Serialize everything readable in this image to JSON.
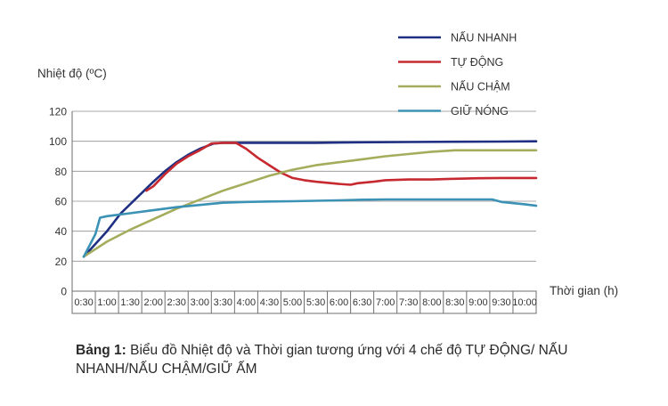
{
  "chart_data": {
    "type": "line",
    "ylabel": "Nhiệt độ (ºC)",
    "xlabel": "Thời gian (h)",
    "ylim": [
      0,
      120
    ],
    "yticks": [
      0,
      20,
      40,
      60,
      80,
      100,
      120
    ],
    "grid": true,
    "legend_position": "top-right",
    "categories": [
      "0:30",
      "1:00",
      "1:30",
      "2:00",
      "2:30",
      "3:00",
      "3:30",
      "4:00",
      "4:30",
      "5:00",
      "5:30",
      "6:00",
      "6:30",
      "7:00",
      "7:30",
      "8:00",
      "8:30",
      "9:00",
      "9:30",
      "10:00"
    ],
    "series": [
      {
        "name": "NẤU NHANH",
        "color": "#1f2f82",
        "points": [
          [
            0,
            23
          ],
          [
            0.3,
            28
          ],
          [
            1,
            40
          ],
          [
            1.6,
            52
          ],
          [
            2,
            58
          ],
          [
            2.6,
            67
          ],
          [
            3,
            73
          ],
          [
            3.5,
            80
          ],
          [
            4,
            86
          ],
          [
            4.5,
            91
          ],
          [
            5,
            95
          ],
          [
            5.6,
            98.5
          ],
          [
            6,
            99
          ],
          [
            7,
            99
          ],
          [
            8,
            99
          ],
          [
            10,
            99
          ],
          [
            12,
            99.3
          ],
          [
            14,
            99.5
          ],
          [
            16,
            99.7
          ],
          [
            18,
            99.8
          ],
          [
            19.5,
            100
          ]
        ]
      },
      {
        "name": "TỰ ĐỘNG",
        "color": "#c62a30",
        "points": [
          [
            2.7,
            67
          ],
          [
            3,
            70
          ],
          [
            3.5,
            78
          ],
          [
            4,
            85
          ],
          [
            4.5,
            90
          ],
          [
            5,
            94
          ],
          [
            5.5,
            98.5
          ],
          [
            6,
            99
          ],
          [
            6.55,
            99
          ],
          [
            7,
            95
          ],
          [
            7.5,
            89
          ],
          [
            8,
            84
          ],
          [
            8.5,
            79
          ],
          [
            9,
            75.5
          ],
          [
            9.5,
            74
          ],
          [
            10,
            73
          ],
          [
            11,
            71.5
          ],
          [
            11.5,
            71
          ],
          [
            11.8,
            72
          ],
          [
            12.5,
            73
          ],
          [
            13,
            74
          ],
          [
            14,
            74.5
          ],
          [
            15,
            74.5
          ],
          [
            16,
            75
          ],
          [
            17,
            75.3
          ],
          [
            18,
            75.5
          ],
          [
            19.5,
            75.5
          ]
        ]
      },
      {
        "name": "NẤU CHẬM",
        "color": "#a5ad5c",
        "points": [
          [
            0,
            23
          ],
          [
            1,
            33
          ],
          [
            2,
            41
          ],
          [
            3,
            48
          ],
          [
            4,
            55
          ],
          [
            5,
            61
          ],
          [
            6,
            67
          ],
          [
            7,
            72
          ],
          [
            8,
            77
          ],
          [
            9,
            81
          ],
          [
            10,
            84
          ],
          [
            11,
            86
          ],
          [
            12,
            88
          ],
          [
            13,
            90
          ],
          [
            14,
            91.5
          ],
          [
            15,
            93
          ],
          [
            16,
            94
          ],
          [
            17,
            94
          ],
          [
            18,
            94
          ],
          [
            19.5,
            94
          ]
        ]
      },
      {
        "name": "GIỮ NÓNG",
        "color": "#3b92b5",
        "points": [
          [
            0,
            23
          ],
          [
            0.5,
            38
          ],
          [
            0.7,
            49
          ],
          [
            1,
            50
          ],
          [
            2,
            52
          ],
          [
            3,
            54
          ],
          [
            4,
            56
          ],
          [
            5,
            57.5
          ],
          [
            6,
            59
          ],
          [
            7,
            59.5
          ],
          [
            8,
            59.8
          ],
          [
            9,
            60
          ],
          [
            10,
            60.3
          ],
          [
            11,
            60.6
          ],
          [
            12,
            61
          ],
          [
            13,
            61.2
          ],
          [
            14,
            61.2
          ],
          [
            15,
            61.2
          ],
          [
            16,
            61.2
          ],
          [
            17,
            61.2
          ],
          [
            17.6,
            61.2
          ],
          [
            18,
            59.5
          ],
          [
            19,
            58
          ],
          [
            19.5,
            57
          ]
        ]
      }
    ]
  },
  "caption": {
    "bold": "Bảng 1:",
    "text": " Biểu đồ Nhiệt độ và Thời gian tương ứng với 4 chế độ TỰ ĐỘNG/ NẤU NHANH/NẤU CHẬM/GIỮ ẤM"
  }
}
